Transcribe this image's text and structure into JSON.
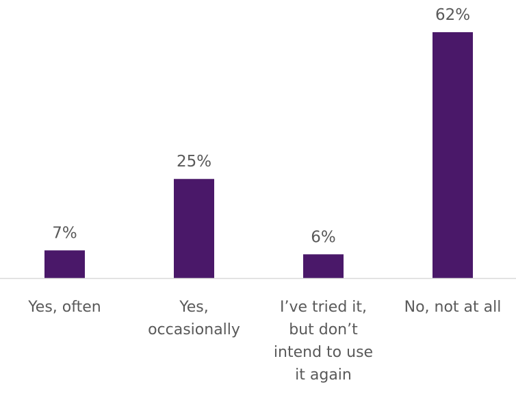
{
  "chart_data": {
    "type": "bar",
    "title": "",
    "xlabel": "",
    "ylabel": "",
    "categories": [
      [
        "Yes, often"
      ],
      [
        "Yes,",
        "occasionally"
      ],
      [
        "I’ve tried it,",
        "but don’t",
        "intend to use",
        "it again"
      ],
      [
        "No, not at all"
      ]
    ],
    "values": [
      7,
      25,
      6,
      62
    ],
    "data_labels": [
      "7%",
      "25%",
      "6%",
      "62%"
    ],
    "ylim": [
      0,
      62
    ],
    "grid": false,
    "legend": "none",
    "colors": {
      "bar": "#4a1869",
      "axis": "#d9d9d9",
      "text": "#595959"
    }
  }
}
